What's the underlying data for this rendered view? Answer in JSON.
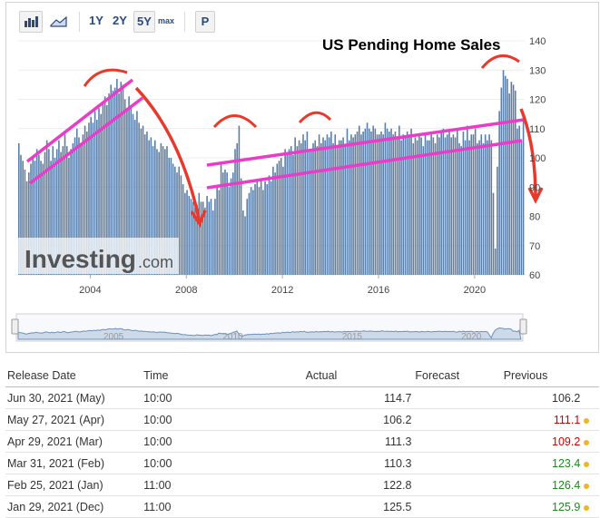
{
  "toolbar": {
    "bar_icon": "bar-chart-icon",
    "area_icon": "area-chart-icon",
    "ranges": [
      "1Y",
      "2Y",
      "5Y",
      "max"
    ],
    "p_label": "P"
  },
  "annotation_title": "US Pending Home Sales",
  "watermark": {
    "brand": "Investing",
    "suffix": ".com"
  },
  "chart_data": {
    "type": "bar",
    "title": "US Pending Home Sales",
    "xlabel": "",
    "ylabel": "",
    "ylim": [
      60,
      140
    ],
    "y_ticks": [
      60,
      70,
      80,
      90,
      100,
      110,
      120,
      130,
      140
    ],
    "x_ticks": [
      "2004",
      "2008",
      "2012",
      "2016",
      "2020"
    ],
    "navigator_ticks": [
      "2005",
      "2010",
      "2015",
      "2020"
    ],
    "grid": true,
    "legend": "none",
    "color": "#5b7ea7",
    "start": "2001-01",
    "frequency": "monthly",
    "values": [
      105,
      101,
      99,
      96,
      92,
      95,
      98,
      100,
      99,
      103,
      101,
      99,
      98,
      102,
      106,
      103,
      99,
      104,
      100,
      103,
      106,
      102,
      104,
      108,
      104,
      100,
      103,
      105,
      107,
      110,
      107,
      105,
      108,
      111,
      109,
      112,
      114,
      112,
      116,
      113,
      117,
      115,
      119,
      121,
      118,
      122,
      125,
      123,
      124,
      127,
      122,
      126,
      125,
      120,
      117,
      121,
      118,
      115,
      113,
      116,
      112,
      110,
      111,
      108,
      109,
      106,
      107,
      104,
      106,
      103,
      102,
      105,
      104,
      103,
      104,
      100,
      100,
      98,
      97,
      95,
      97,
      94,
      91,
      88,
      89,
      87,
      86,
      85,
      83,
      84,
      88,
      85,
      85,
      83,
      87,
      85,
      86,
      82,
      86,
      90,
      89,
      98,
      95,
      96,
      95,
      90,
      93,
      95,
      103,
      105,
      111,
      93,
      82,
      80,
      86,
      88,
      90,
      89,
      91,
      92,
      90,
      93,
      89,
      92,
      91,
      94,
      92,
      97,
      95,
      98,
      99,
      100,
      97,
      103,
      101,
      103,
      104,
      101,
      107,
      104,
      106,
      105,
      108,
      106,
      109,
      103,
      103,
      105,
      106,
      104,
      108,
      105,
      107,
      106,
      108,
      107,
      109,
      105,
      108,
      104,
      106,
      106,
      107,
      104,
      110,
      106,
      108,
      107,
      108,
      109,
      111,
      108,
      109,
      110,
      112,
      110,
      109,
      111,
      110,
      108,
      108,
      109,
      108,
      112,
      110,
      109,
      110,
      108,
      109,
      107,
      111,
      106,
      108,
      107,
      109,
      108,
      110,
      105,
      107,
      106,
      108,
      107,
      104,
      108,
      106,
      106,
      109,
      107,
      105,
      108,
      107,
      109,
      110,
      107,
      108,
      109,
      107,
      108,
      107,
      110,
      105,
      104,
      109,
      106,
      111,
      106,
      108,
      108,
      110,
      105,
      106,
      108,
      105,
      108,
      106,
      108,
      106,
      88,
      69,
      97,
      116,
      124,
      130,
      128,
      127,
      122,
      126,
      125,
      123,
      110,
      111,
      106,
      115
    ],
    "overlays": {
      "trend_lines": "magenta",
      "forecast_arrows": "red"
    }
  },
  "table": {
    "headers": [
      "Release Date",
      "Time",
      "Actual",
      "Forecast",
      "Previous"
    ],
    "rows": [
      {
        "date": "Jun 30, 2021 (May)",
        "time": "10:00",
        "actual": "114.7",
        "forecast": "",
        "previous": "106.2",
        "prev_status": "neutral"
      },
      {
        "date": "May 27, 2021 (Apr)",
        "time": "10:00",
        "actual": "106.2",
        "forecast": "",
        "previous": "111.1",
        "prev_status": "revised-down"
      },
      {
        "date": "Apr 29, 2021 (Mar)",
        "time": "10:00",
        "actual": "111.3",
        "forecast": "",
        "previous": "109.2",
        "prev_status": "revised-down"
      },
      {
        "date": "Mar 31, 2021 (Feb)",
        "time": "10:00",
        "actual": "110.3",
        "forecast": "",
        "previous": "123.4",
        "prev_status": "revised-up"
      },
      {
        "date": "Feb 25, 2021 (Jan)",
        "time": "11:00",
        "actual": "122.8",
        "forecast": "",
        "previous": "126.4",
        "prev_status": "revised-up"
      },
      {
        "date": "Jan 29, 2021 (Dec)",
        "time": "11:00",
        "actual": "125.5",
        "forecast": "",
        "previous": "125.9",
        "prev_status": "revised-up"
      }
    ]
  },
  "colors": {
    "bar": "#5b7ea7",
    "trend": "#e83cc9",
    "arrow": "#e8392d",
    "revised_down": "#d00000",
    "revised_up": "#1a8c1a",
    "dot": "#f0b429"
  }
}
